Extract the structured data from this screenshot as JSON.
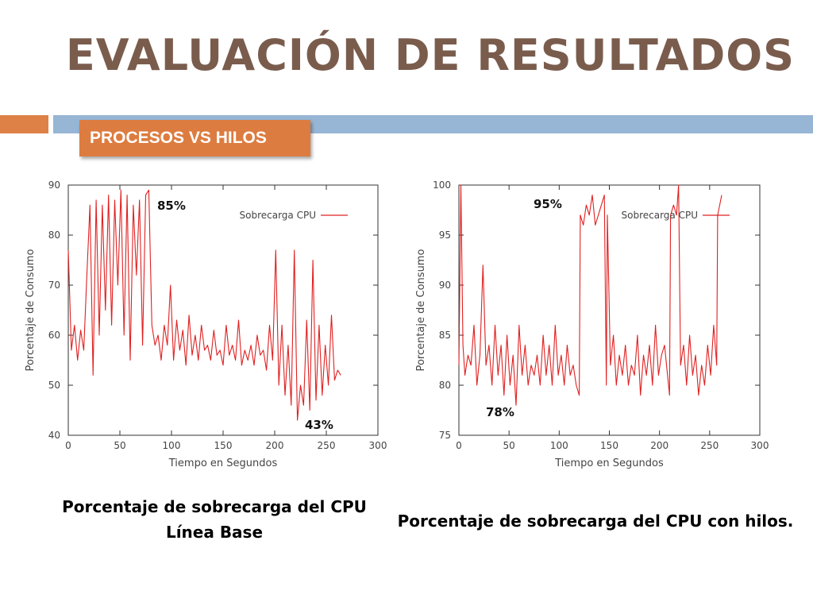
{
  "slide": {
    "title": "EVALUACIÓN DE RESULTADOS",
    "badge": "PROCESOS VS HILOS",
    "accent_colors": {
      "title": "#7a5c4d",
      "badge": "#dd7c40",
      "bar_left": "#dd8147",
      "bar_right": "#97b6d5",
      "line": "#e02020"
    }
  },
  "captions": {
    "left_line1": "Porcentaje de sobrecarga del CPU",
    "left_line2": "Línea Base",
    "right": "Porcentaje de sobrecarga del CPU con hilos."
  },
  "chart_data": [
    {
      "type": "line",
      "title": "",
      "xlabel": "Tiempo en Segundos",
      "ylabel": "Porcentaje de Consumo",
      "xlim": [
        0,
        300
      ],
      "ylim": [
        40,
        90
      ],
      "xticks": [
        0,
        50,
        100,
        150,
        200,
        250,
        300
      ],
      "yticks": [
        40,
        50,
        60,
        70,
        80,
        90
      ],
      "grid": false,
      "legend": "top-right",
      "annotations": [
        "85%",
        "43%"
      ],
      "series": [
        {
          "name": "Sobrecarga CPU",
          "color": "#e02020",
          "x": [
            0,
            3,
            6,
            9,
            12,
            15,
            18,
            21,
            24,
            27,
            30,
            33,
            36,
            39,
            42,
            45,
            48,
            51,
            54,
            57,
            60,
            63,
            66,
            69,
            72,
            75,
            78,
            81,
            84,
            87,
            90,
            93,
            96,
            99,
            102,
            105,
            108,
            111,
            114,
            117,
            120,
            123,
            126,
            129,
            132,
            135,
            138,
            141,
            144,
            147,
            150,
            153,
            156,
            159,
            162,
            165,
            168,
            171,
            174,
            177,
            180,
            183,
            186,
            189,
            192,
            195,
            198,
            201,
            204,
            207,
            210,
            213,
            216,
            219,
            222,
            225,
            228,
            231,
            234,
            237,
            240,
            243,
            246,
            249,
            252,
            255,
            258,
            261,
            264
          ],
          "y": [
            77,
            57,
            62,
            55,
            61,
            57,
            72,
            86,
            52,
            87,
            60,
            86,
            65,
            88,
            62,
            87,
            70,
            89,
            60,
            88,
            55,
            86,
            72,
            87,
            58,
            88,
            89,
            62,
            58,
            60,
            55,
            62,
            58,
            70,
            55,
            63,
            57,
            61,
            54,
            64,
            56,
            60,
            55,
            62,
            57,
            58,
            55,
            61,
            56,
            57,
            54,
            62,
            56,
            58,
            55,
            63,
            54,
            57,
            55,
            58,
            54,
            60,
            56,
            57,
            53,
            62,
            55,
            77,
            50,
            62,
            48,
            58,
            46,
            77,
            43,
            50,
            46,
            63,
            45,
            75,
            47,
            62,
            48,
            58,
            50,
            64,
            51,
            53,
            52
          ]
        }
      ]
    },
    {
      "type": "line",
      "title": "",
      "xlabel": "Tiempo en Segundos",
      "ylabel": "Porcentaje de Consumo",
      "xlim": [
        0,
        300
      ],
      "ylim": [
        75,
        100
      ],
      "xticks": [
        0,
        50,
        100,
        150,
        200,
        250,
        300
      ],
      "yticks": [
        75,
        80,
        85,
        90,
        95,
        100
      ],
      "grid": false,
      "legend": "top-right",
      "annotations": [
        "95%",
        "78%"
      ],
      "series": [
        {
          "name": "Sobrecarga CPU",
          "color": "#e02020",
          "x": [
            0,
            2,
            4,
            6,
            9,
            12,
            15,
            18,
            21,
            24,
            27,
            30,
            33,
            36,
            39,
            42,
            45,
            48,
            51,
            54,
            57,
            60,
            63,
            66,
            69,
            72,
            75,
            78,
            81,
            84,
            87,
            90,
            93,
            96,
            99,
            102,
            105,
            108,
            111,
            114,
            117,
            120,
            121,
            124,
            127,
            130,
            133,
            136,
            139,
            142,
            145,
            147,
            148,
            151,
            154,
            157,
            160,
            163,
            166,
            169,
            172,
            175,
            178,
            181,
            184,
            187,
            190,
            193,
            196,
            199,
            202,
            205,
            208,
            210,
            211,
            214,
            217,
            219,
            221,
            224,
            227,
            230,
            233,
            236,
            239,
            242,
            245,
            248,
            251,
            254,
            257,
            258,
            260,
            262
          ],
          "y": [
            82,
            100,
            84,
            81,
            83,
            82,
            86,
            80,
            83,
            92,
            82,
            84,
            80,
            86,
            81,
            84,
            79,
            85,
            80,
            83,
            78,
            86,
            81,
            84,
            80,
            82,
            81,
            83,
            80,
            85,
            81,
            84,
            80,
            86,
            81,
            83,
            80,
            84,
            81,
            82,
            80,
            79,
            97,
            96,
            98,
            97,
            99,
            96,
            97,
            98,
            99,
            80,
            97,
            82,
            85,
            80,
            83,
            81,
            84,
            80,
            82,
            81,
            85,
            79,
            83,
            81,
            84,
            80,
            86,
            81,
            83,
            84,
            81,
            79,
            97,
            98,
            97,
            100,
            82,
            84,
            80,
            85,
            81,
            83,
            79,
            82,
            80,
            84,
            81,
            86,
            82,
            97,
            98,
            99
          ]
        }
      ]
    }
  ]
}
